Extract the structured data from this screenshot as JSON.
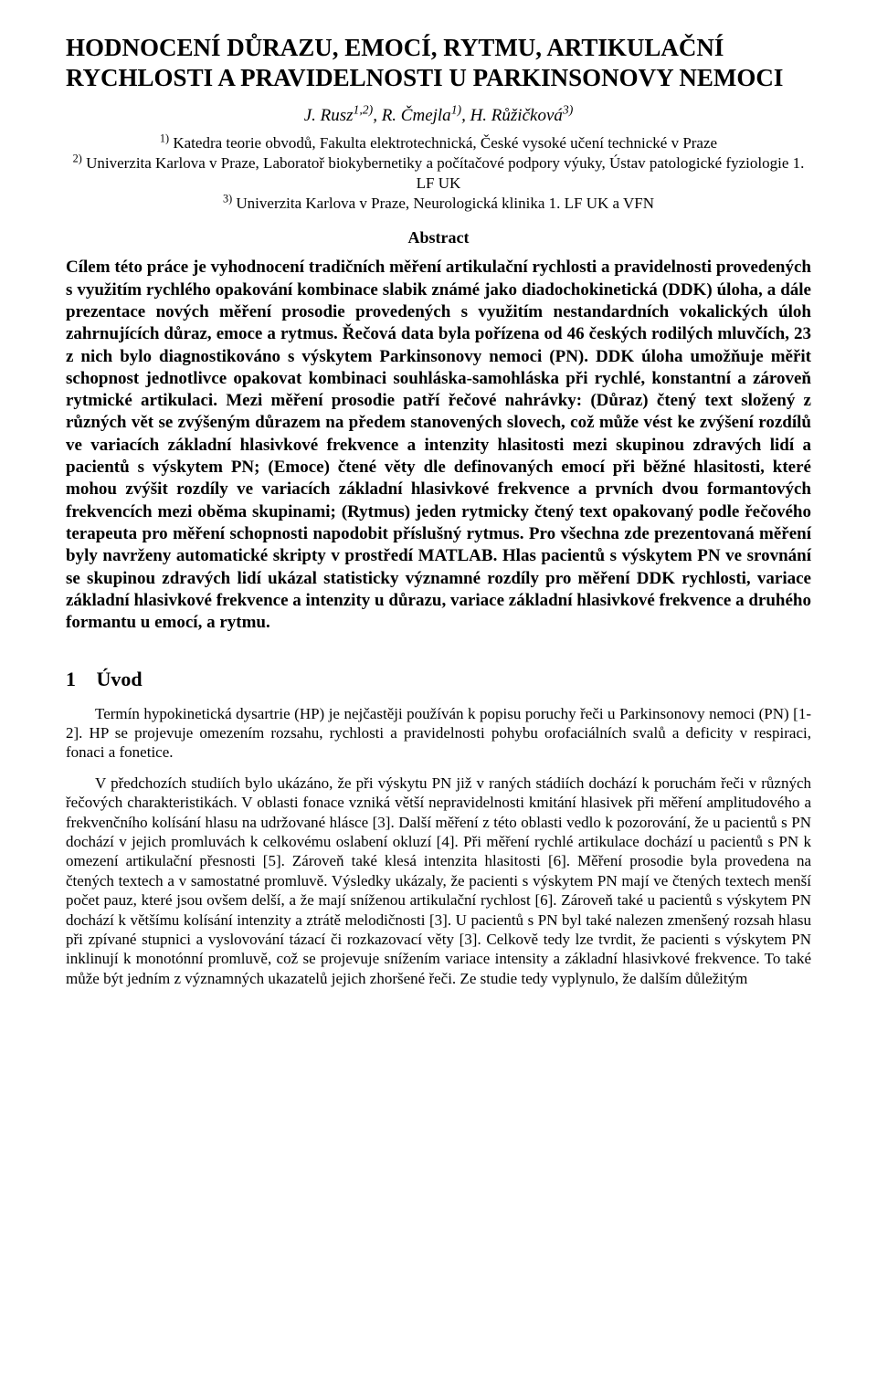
{
  "title": "HODNOCENÍ DŮRAZU, EMOCÍ, RYTMU, ARTIKULAČNÍ RYCHLOSTI A PRAVIDELNOSTI U PARKINSONOVY NEMOCI",
  "authors_html": "J. Rusz<sup>1,2)</sup>, R. Čmejla<sup>1)</sup>, H. Růžičková<sup>3)</sup>",
  "affiliations_html": "<sup>1)</sup> Katedra teorie obvodů, Fakulta elektrotechnická, České vysoké učení technické v Praze<br><sup>2)</sup> Univerzita Karlova v Praze, Laboratoř biokybernetiky a počítačové podpory výuky, Ústav patologické fyziologie 1. LF UK<br><sup>3)</sup> Univerzita Karlova v Praze, Neurologická klinika 1. LF UK a VFN",
  "abstract_heading": "Abstract",
  "abstract_body": "Cílem této práce je vyhodnocení tradičních měření artikulační rychlosti a pravidelnosti provedených s využitím rychlého opakování kombinace slabik známé jako diadochokinetická (DDK) úloha, a dále prezentace nových měření prosodie provedených s využitím nestandardních vokalických úloh zahrnujících důraz, emoce a rytmus. Řečová data byla pořízena od 46 českých rodilých mluvčích, 23 z nich bylo diagnostikováno s výskytem Parkinsonovy nemoci (PN). DDK úloha umožňuje měřit schopnost jednotlivce opakovat kombinaci souhláska-samohláska při rychlé, konstantní a zároveň rytmické artikulaci. Mezi měření prosodie patří řečové nahrávky: (Důraz) čtený text složený z různých vět se zvýšeným důrazem na předem stanovených slovech, což může vést ke zvýšení rozdílů ve variacích základní hlasivkové frekvence a intenzity hlasitosti mezi skupinou zdravých lidí a pacientů s výskytem PN; (Emoce) čtené věty dle definovaných emocí při běžné hlasitosti, které mohou zvýšit rozdíly ve variacích základní hlasivkové frekvence a prvních dvou formantových frekvencích mezi oběma skupinami; (Rytmus) jeden rytmicky čtený text opakovaný podle řečového terapeuta pro měření schopnosti napodobit příslušný rytmus. Pro všechna zde prezentovaná měření byly navrženy automatické skripty v prostředí MATLAB. Hlas pacientů s výskytem PN ve srovnání se skupinou zdravých lidí ukázal statisticky významné rozdíly pro měření DDK rychlosti, variace základní hlasivkové frekvence a intenzity u důrazu, variace základní hlasivkové frekvence a druhého formantu u emocí, a rytmu.",
  "section": {
    "num": "1",
    "title": "Úvod"
  },
  "paragraphs": [
    "Termín hypokinetická dysartrie (HP) je nejčastěji používán k popisu poruchy řeči u Parkinsonovy nemoci (PN) [1-2]. HP se projevuje omezením rozsahu, rychlosti a pravidelnosti pohybu orofaciálních svalů a deficity v respiraci, fonaci a fonetice.",
    "V předchozích studiích bylo ukázáno, že při výskytu PN již v raných stádiích dochází k poruchám řeči v různých řečových charakteristikách. V oblasti fonace vzniká větší nepravidelnosti kmitání hlasivek při měření amplitudového a frekvenčního kolísání hlasu na udržované hlásce [3]. Další měření z této oblasti vedlo k pozorování, že u pacientů s PN dochází v jejich promluvách k celkovému oslabení okluzí [4]. Při měření rychlé artikulace dochází u pacientů s PN k omezení artikulační přesnosti [5]. Zároveň také klesá intenzita hlasitosti [6]. Měření prosodie byla provedena na čtených textech a v samostatné promluvě. Výsledky ukázaly, že pacienti s výskytem PN mají ve čtených textech menší počet pauz, které jsou ovšem delší, a že mají sníženou artikulační rychlost [6]. Zároveň také u pacientů s výskytem PN dochází k většímu kolísání intenzity a ztrátě melodičnosti [3]. U pacientů s PN byl také nalezen zmenšený rozsah hlasu při zpívané stupnici a vyslovování tázací či rozkazovací věty [3]. Celkově tedy lze tvrdit, že pacienti s výskytem PN inklinují k monotónní promluvě, což se projevuje snížením variace intensity a základní hlasivkové frekvence. To také může být jedním z významných ukazatelů jejich zhoršené řeči. Ze studie tedy vyplynulo, že dalším důležitým"
  ]
}
